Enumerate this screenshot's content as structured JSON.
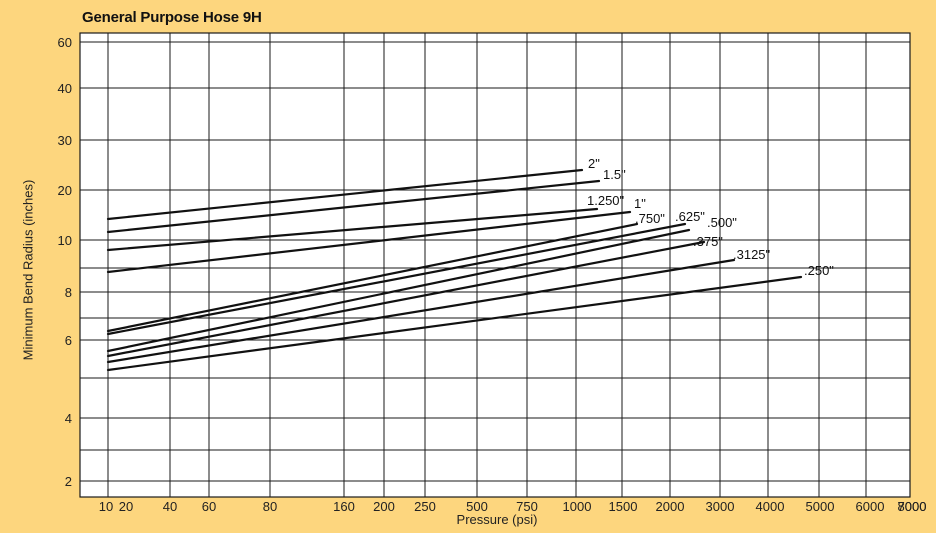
{
  "chart_data": {
    "type": "line",
    "title": "General Purpose Hose 9H",
    "xlabel": "Pressure (psi)",
    "ylabel": "Minimum Bend Radius (inches)",
    "x_ticks": [
      "10",
      "20",
      "40",
      "60",
      "80",
      "160",
      "200",
      "250",
      "500",
      "750",
      "1000",
      "1500",
      "2000",
      "3000",
      "4000",
      "5000",
      "6000",
      "7000",
      "8000"
    ],
    "y_ticks": [
      "2",
      "4",
      "6",
      "8",
      "10",
      "20",
      "30",
      "40",
      "60"
    ],
    "grid": true,
    "legend": "none",
    "series": [
      {
        "name": "2\"",
        "x": [
          10,
          1000
        ],
        "y": [
          14,
          24
        ]
      },
      {
        "name": "1.5\"",
        "x": [
          10,
          1050
        ],
        "y": [
          11.5,
          22
        ]
      },
      {
        "name": "1.250\"",
        "x": [
          10,
          1500
        ],
        "y": [
          9,
          15.5
        ]
      },
      {
        "name": "1\"",
        "x": [
          10,
          2000
        ],
        "y": [
          7.3,
          15
        ]
      },
      {
        "name": ".750\"",
        "x": [
          10,
          2000
        ],
        "y": [
          6.2,
          13
        ]
      },
      {
        "name": ".625\"",
        "x": [
          10,
          3000
        ],
        "y": [
          6.1,
          12.7
        ]
      },
      {
        "name": ".500\"",
        "x": [
          10,
          3000
        ],
        "y": [
          5.7,
          12
        ]
      },
      {
        "name": ".375\"",
        "x": [
          10,
          3800
        ],
        "y": [
          5.6,
          10
        ]
      },
      {
        "name": ".3125\"",
        "x": [
          10,
          4000
        ],
        "y": [
          5.3,
          8.7
        ]
      },
      {
        "name": ".250\"",
        "x": [
          10,
          5500
        ],
        "y": [
          5.1,
          7.4
        ]
      }
    ]
  }
}
